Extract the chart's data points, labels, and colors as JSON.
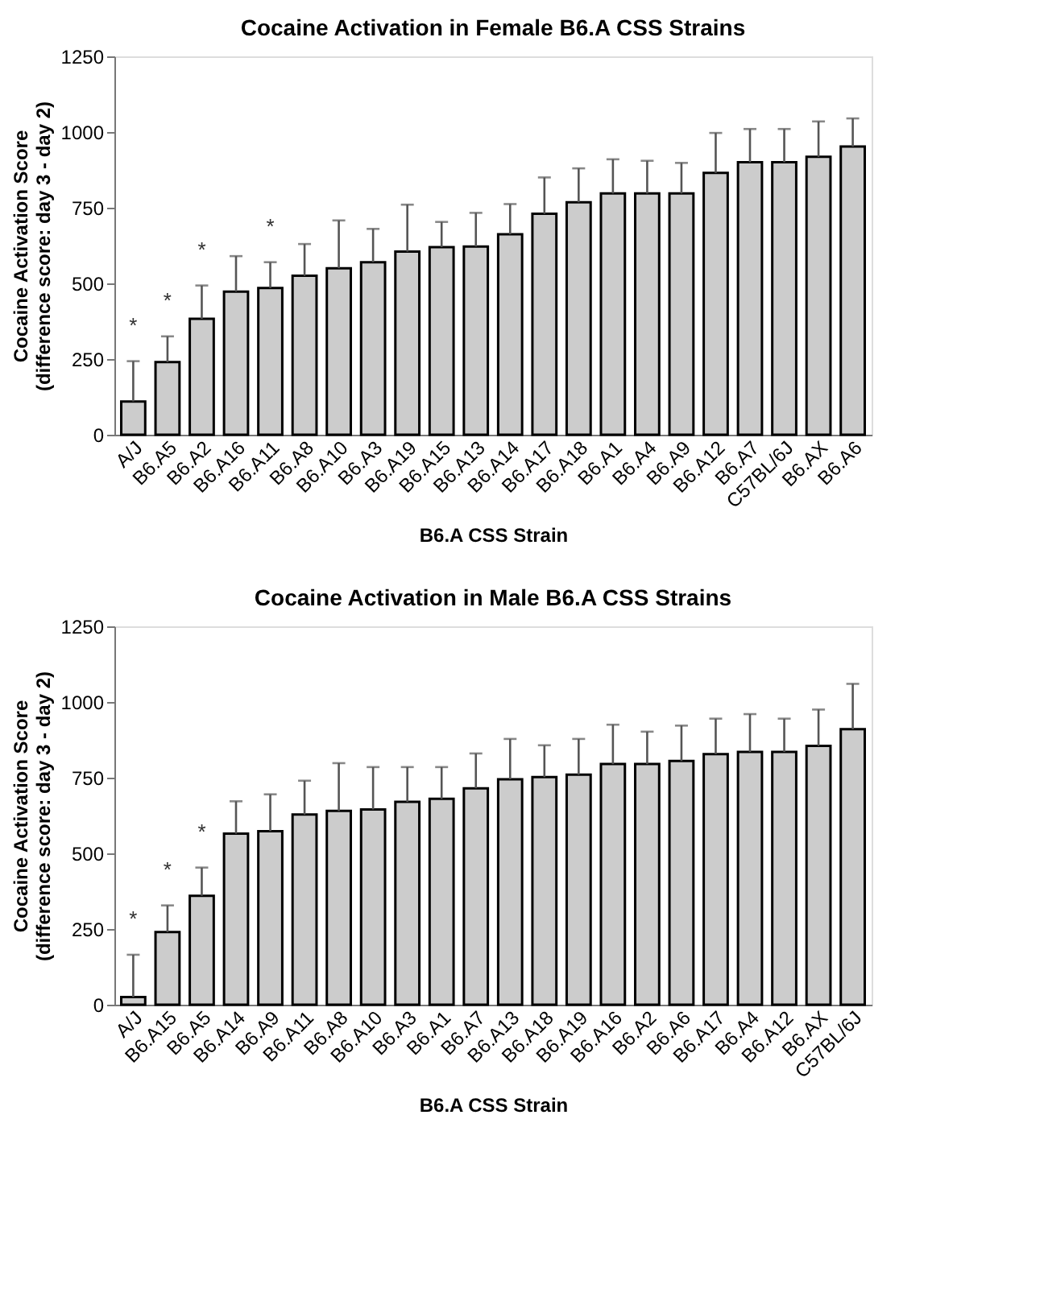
{
  "chart_data": [
    {
      "type": "bar",
      "title": "Cocaine Activation in Female B6.A CSS Strains",
      "xlabel": "B6.A CSS Strain",
      "ylabel": "Cocaine Activation Score\n(difference score: day 3 - day 2)",
      "categories": [
        "A/J",
        "B6.A5",
        "B6.A2",
        "B6.A16",
        "B6.A11",
        "B6.A8",
        "B6.A10",
        "B6.A3",
        "B6.A19",
        "B6.A15",
        "B6.A13",
        "B6.A14",
        "B6.A17",
        "B6.A18",
        "B6.A1",
        "B6.A4",
        "B6.A9",
        "B6.A12",
        "B6.A7",
        "C57BL/6J",
        "B6.AX",
        "B6.A6"
      ],
      "values": [
        110,
        240,
        383,
        473,
        485,
        525,
        550,
        570,
        605,
        620,
        622,
        662,
        730,
        768,
        797,
        797,
        797,
        865,
        900,
        900,
        918,
        952
      ],
      "errors": [
        [
          110,
          243
        ],
        [
          240,
          325
        ],
        [
          383,
          493
        ],
        [
          473,
          590
        ],
        [
          485,
          570
        ],
        [
          525,
          630
        ],
        [
          550,
          708
        ],
        [
          570,
          680
        ],
        [
          605,
          760
        ],
        [
          620,
          703
        ],
        [
          622,
          733
        ],
        [
          662,
          762
        ],
        [
          730,
          850
        ],
        [
          768,
          880
        ],
        [
          797,
          910
        ],
        [
          797,
          905
        ],
        [
          797,
          898
        ],
        [
          865,
          997
        ],
        [
          900,
          1010
        ],
        [
          900,
          1010
        ],
        [
          918,
          1035
        ],
        [
          952,
          1045
        ]
      ],
      "color": "#cccccc",
      "ylim": [
        0,
        1250
      ],
      "yticks": [
        0,
        250,
        500,
        750,
        1000,
        1250
      ],
      "grid": false,
      "annotations": [
        {
          "text": "*",
          "x": "A/J",
          "y": 243
        },
        {
          "text": "*",
          "x": "B6.A5",
          "y": 325
        },
        {
          "text": "*",
          "x": "B6.A2",
          "y": 493
        },
        {
          "text": "*",
          "x": "B6.A11",
          "y": 570
        }
      ]
    },
    {
      "type": "bar",
      "title": "Cocaine Activation in Male B6.A CSS Strains",
      "xlabel": "B6.A CSS Strain",
      "ylabel": "Cocaine Activation Score\n(difference score: day 3 - day 2)",
      "categories": [
        "A/J",
        "B6.A15",
        "B6.A5",
        "B6.A14",
        "B6.A9",
        "B6.A11",
        "B6.A8",
        "B6.A10",
        "B6.A3",
        "B6.A1",
        "B6.A7",
        "B6.A13",
        "B6.A18",
        "B6.A19",
        "B6.A16",
        "B6.A2",
        "B6.A6",
        "B6.A17",
        "B6.A4",
        "B6.A12",
        "B6.AX",
        "C57BL/6J"
      ],
      "values": [
        25,
        240,
        360,
        565,
        573,
        628,
        640,
        645,
        670,
        680,
        715,
        745,
        752,
        760,
        795,
        795,
        805,
        828,
        835,
        835,
        855,
        910
      ],
      "errors": [
        [
          25,
          165
        ],
        [
          240,
          328
        ],
        [
          360,
          453
        ],
        [
          565,
          672
        ],
        [
          573,
          695
        ],
        [
          628,
          740
        ],
        [
          640,
          798
        ],
        [
          645,
          785
        ],
        [
          670,
          785
        ],
        [
          680,
          785
        ],
        [
          715,
          830
        ],
        [
          745,
          878
        ],
        [
          752,
          857
        ],
        [
          760,
          878
        ],
        [
          795,
          925
        ],
        [
          795,
          902
        ],
        [
          805,
          922
        ],
        [
          828,
          945
        ],
        [
          835,
          960
        ],
        [
          835,
          945
        ],
        [
          855,
          975
        ],
        [
          910,
          1060
        ]
      ],
      "color": "#cccccc",
      "ylim": [
        0,
        1250
      ],
      "yticks": [
        0,
        250,
        500,
        750,
        1000,
        1250
      ],
      "grid": false,
      "annotations": [
        {
          "text": "*",
          "x": "A/J",
          "y": 165
        },
        {
          "text": "*",
          "x": "B6.A15",
          "y": 328
        },
        {
          "text": "*",
          "x": "B6.A5",
          "y": 453
        }
      ]
    }
  ]
}
